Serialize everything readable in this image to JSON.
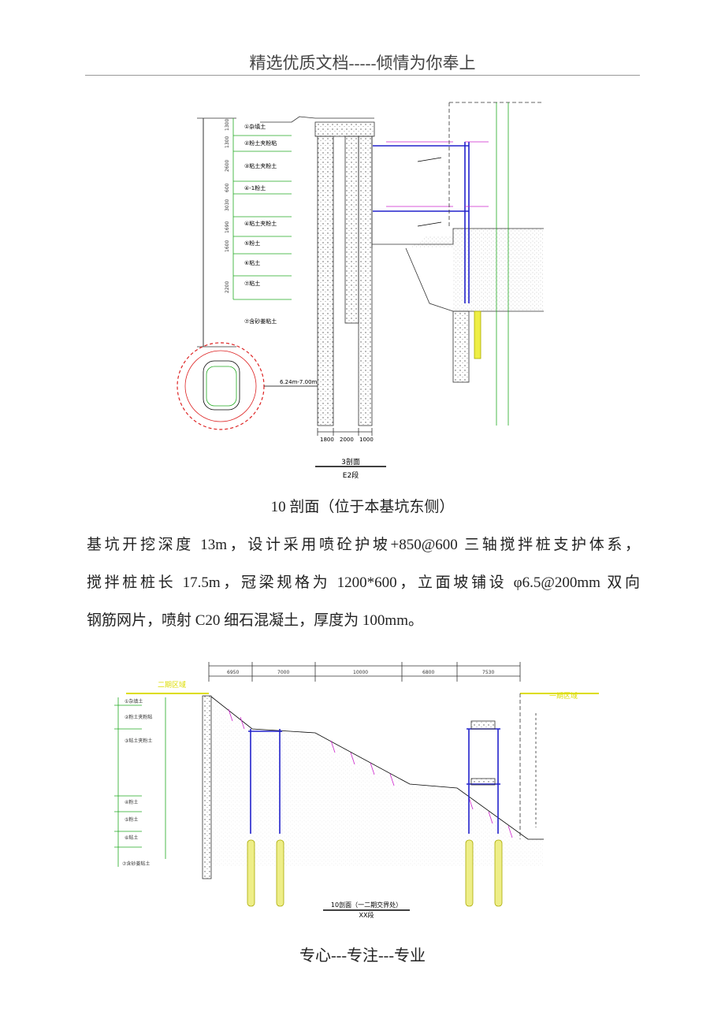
{
  "header": {
    "title": "精选优质文档-----倾情为你奉上"
  },
  "figure1": {
    "title": "3剖面",
    "segment": "E2段",
    "soil_layers": [
      "①杂填土",
      "②粉土夹粉粘",
      "③粘土夹粉土",
      "④-1粉土",
      "④粘土夹粉土",
      "⑤粉土",
      "⑥粘土",
      "⑦粘土",
      "⑦含砂姜粘土"
    ],
    "layer_thickness": [
      "1300",
      "1300",
      "2600",
      "600",
      "3030",
      "1690",
      "1600",
      "2200"
    ],
    "bottom_dims": [
      "1800",
      "2000",
      "1000"
    ],
    "tunnel_depth": "6.24m-7.00m"
  },
  "caption": "10 剖面（位于本基坑东侧）",
  "paragraph": {
    "lines": [
      "基坑开挖深度 13m，设计采用喷砼护坡+850@600 三轴搅拌桩支护体系，",
      "搅拌桩桩长 17.5m，冠梁规格为 1200*600，立面坡铺设 φ6.5@200mm 双向",
      "钢筋网片，喷射 C20 细石混凝土，厚度为 100mm。"
    ]
  },
  "figure2": {
    "title": "10剖面（一二期交界处）",
    "segment": "XX段",
    "left_zone": "二期区域",
    "right_zone": "一期区域",
    "top_dims": [
      "6950",
      "7000",
      "10000",
      "6800",
      "7530"
    ],
    "soil_layers": [
      "①杂填土",
      "②粉土夹粉粘",
      "③粘土夹粉土",
      "④粉土",
      "⑤粉土",
      "⑥粘土",
      "⑦含砂姜粘土"
    ]
  },
  "footer": {
    "text": "专心---专注---专业"
  }
}
